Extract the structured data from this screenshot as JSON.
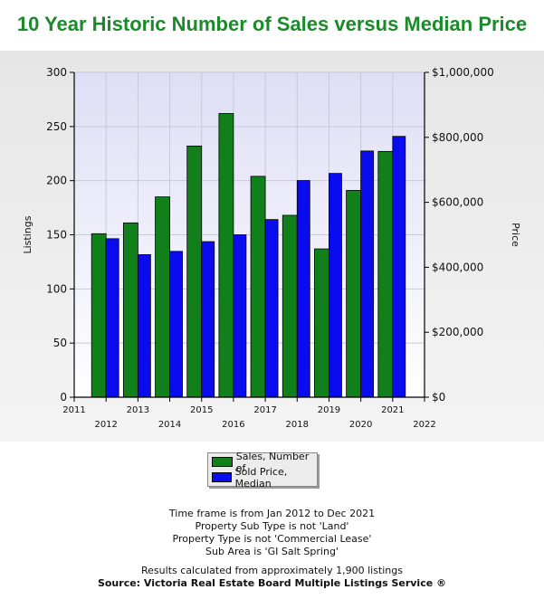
{
  "title": "10 Year Historic Number of Sales versus Median Price",
  "chart_data": {
    "type": "bar",
    "categories": [
      "2012",
      "2013",
      "2014",
      "2015",
      "2016",
      "2017",
      "2018",
      "2019",
      "2020",
      "2021"
    ],
    "x_ticks_upper": [
      "2011",
      "2013",
      "2015",
      "2017",
      "2019",
      "2021"
    ],
    "x_ticks_lower": [
      "2012",
      "2014",
      "2016",
      "2018",
      "2020",
      "2022"
    ],
    "series": [
      {
        "name": "Sales, Number of",
        "axis": "left",
        "color": "#11801a",
        "values": [
          151,
          161,
          185,
          232,
          262,
          204,
          168,
          137,
          191,
          227
        ]
      },
      {
        "name": "Sold Price, Median",
        "axis": "right",
        "color": "#0b0bf0",
        "values": [
          488000,
          439000,
          449000,
          479000,
          500000,
          547000,
          667000,
          689000,
          758000,
          803000
        ]
      }
    ],
    "ylabel_left": "Listings",
    "ylabel_right": "Price",
    "ylim_left": [
      0,
      300
    ],
    "ylim_right": [
      0,
      1000000
    ],
    "yticks_left": [
      "0",
      "50",
      "100",
      "150",
      "200",
      "250",
      "300"
    ],
    "yticks_right": [
      "$0",
      "$200,000",
      "$400,000",
      "$600,000",
      "$800,000",
      "$1,000,000"
    ],
    "grid": true,
    "legend_position": "bottom-center"
  },
  "legend": {
    "items": [
      {
        "label": "Sales, Number of",
        "color": "#11801a"
      },
      {
        "label": "Sold Price, Median",
        "color": "#0b0bf0"
      }
    ]
  },
  "notes": {
    "lines": [
      "Time frame is from Jan 2012 to Dec 2021",
      "Property Sub Type is not 'Land'",
      "Property Type is not 'Commercial Lease'",
      "Sub Area is 'GI Salt Spring'"
    ],
    "results": "Results calculated from approximately 1,900 listings",
    "source": "Source: Victoria Real Estate Board Multiple Listings Service ®"
  }
}
